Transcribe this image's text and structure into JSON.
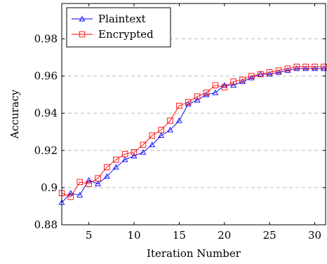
{
  "chart_data": {
    "type": "line",
    "xlabel": "Iteration Number",
    "ylabel": "Accuracy",
    "xlim": [
      2,
      31.2
    ],
    "ylim": [
      0.88,
      0.999
    ],
    "xticks": [
      5,
      10,
      15,
      20,
      25,
      30
    ],
    "yticks": [
      0.88,
      0.9,
      0.92,
      0.94,
      0.96,
      0.98
    ],
    "ytick_labels": [
      "0.88",
      "0.9",
      "0.92",
      "0.94",
      "0.96",
      "0.98"
    ],
    "grid": "horizontal dashed",
    "legend_position": "top-left",
    "x": [
      2,
      3,
      4,
      5,
      6,
      7,
      8,
      9,
      10,
      11,
      12,
      13,
      14,
      15,
      16,
      17,
      18,
      19,
      20,
      21,
      22,
      23,
      24,
      25,
      26,
      27,
      28,
      29,
      30,
      31
    ],
    "series": [
      {
        "name": "Plaintext",
        "color": "#0000ff",
        "marker": "triangle",
        "values": [
          0.892,
          0.897,
          0.896,
          0.904,
          0.902,
          0.906,
          0.911,
          0.915,
          0.917,
          0.919,
          0.923,
          0.928,
          0.931,
          0.936,
          0.945,
          0.947,
          0.95,
          0.951,
          0.955,
          0.955,
          0.957,
          0.959,
          0.961,
          0.961,
          0.962,
          0.963,
          0.964,
          0.964,
          0.964,
          0.964
        ]
      },
      {
        "name": "Encrypted",
        "color": "#ff0000",
        "marker": "square",
        "values": [
          0.897,
          0.895,
          0.903,
          0.902,
          0.905,
          0.911,
          0.915,
          0.918,
          0.919,
          0.923,
          0.928,
          0.931,
          0.936,
          0.944,
          0.946,
          0.949,
          0.951,
          0.955,
          0.954,
          0.957,
          0.958,
          0.96,
          0.961,
          0.962,
          0.963,
          0.964,
          0.965,
          0.965,
          0.965,
          0.965
        ]
      }
    ]
  }
}
